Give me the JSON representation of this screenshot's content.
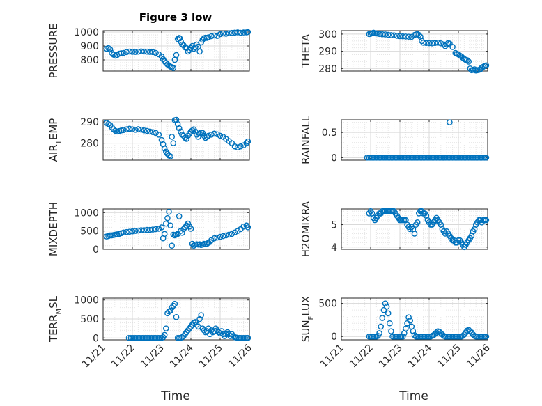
{
  "figure": {
    "title": "Figure 3 low"
  },
  "chart_data": [
    {
      "type": "scatter",
      "id": "pressure",
      "ylabel": "PRESSURE",
      "ylim": [
        720,
        1010
      ],
      "yticks": [
        800,
        900,
        1000
      ],
      "xlim": [
        0,
        5
      ],
      "grid": true,
      "marker": "circle",
      "x": [
        0.12,
        0.18,
        0.24,
        0.3,
        0.36,
        0.42,
        0.48,
        0.55,
        0.62,
        0.7,
        0.8,
        0.9,
        1.0,
        1.1,
        1.2,
        1.3,
        1.4,
        1.5,
        1.6,
        1.7,
        1.8,
        1.9,
        2.0,
        2.05,
        2.1,
        2.15,
        2.2,
        2.25,
        2.3,
        2.35,
        2.4,
        2.45,
        2.5,
        2.55,
        2.6,
        2.62,
        2.66,
        2.7,
        2.75,
        2.8,
        2.85,
        2.9,
        2.95,
        3.0,
        3.05,
        3.1,
        3.15,
        3.2,
        3.25,
        3.3,
        3.35,
        3.4,
        3.45,
        3.5,
        3.55,
        3.6,
        3.7,
        3.8,
        3.9,
        4.0,
        4.1,
        4.2,
        4.3,
        4.4,
        4.5,
        4.6,
        4.7,
        4.8,
        4.9,
        4.95
      ],
      "y": [
        880,
        885,
        875,
        850,
        838,
        830,
        835,
        845,
        848,
        850,
        856,
        860,
        858,
        857,
        859,
        861,
        860,
        859,
        857,
        856,
        850,
        840,
        825,
        805,
        790,
        778,
        768,
        760,
        752,
        748,
        742,
        800,
        835,
        950,
        958,
        955,
        930,
        910,
        905,
        890,
        885,
        860,
        870,
        885,
        900,
        880,
        890,
        910,
        895,
        860,
        925,
        945,
        955,
        960,
        958,
        962,
        970,
        975,
        972,
        985,
        990,
        988,
        992,
        994,
        996,
        998,
        995,
        997,
        998,
        1000
      ]
    },
    {
      "type": "scatter",
      "id": "theta",
      "ylabel": "THETA",
      "ylim": [
        278.5,
        302
      ],
      "yticks": [
        280,
        290,
        300
      ],
      "xlim": [
        0,
        5
      ],
      "grid": true,
      "marker": "circle",
      "x": [
        0.95,
        1.0,
        1.05,
        1.1,
        1.15,
        1.2,
        1.25,
        1.3,
        1.4,
        1.5,
        1.6,
        1.7,
        1.8,
        1.9,
        2.0,
        2.1,
        2.2,
        2.3,
        2.4,
        2.5,
        2.55,
        2.6,
        2.65,
        2.7,
        2.75,
        2.8,
        2.9,
        3.0,
        3.1,
        3.2,
        3.3,
        3.4,
        3.5,
        3.55,
        3.6,
        3.65,
        3.7,
        3.8,
        3.9,
        3.95,
        4.0,
        4.05,
        4.1,
        4.15,
        4.2,
        4.25,
        4.3,
        4.35,
        4.4,
        4.45,
        4.5,
        4.55,
        4.6,
        4.65,
        4.7,
        4.75,
        4.8,
        4.85,
        4.9,
        4.95
      ],
      "y": [
        300.0,
        300.2,
        300.5,
        300.8,
        300.6,
        300.4,
        300.3,
        300.1,
        299.9,
        299.8,
        299.6,
        299.4,
        299.3,
        299.0,
        298.8,
        298.7,
        298.6,
        298.5,
        298.4,
        299.5,
        299.8,
        300.0,
        299.5,
        298.5,
        296.0,
        295.0,
        294.8,
        294.7,
        294.6,
        294.8,
        295.0,
        294.6,
        294.0,
        293.0,
        294.0,
        294.8,
        294.5,
        292.5,
        289.0,
        288.5,
        288.2,
        287.5,
        287.0,
        286.2,
        285.5,
        285.0,
        284.8,
        284.0,
        280.0,
        279.0,
        279.2,
        279.5,
        278.8,
        279.0,
        279.2,
        279.5,
        280.5,
        281.0,
        281.5,
        281.8
      ]
    },
    {
      "type": "scatter",
      "id": "air_temp",
      "ylabel": "AIR_TEMP",
      "ylim": [
        272,
        291
      ],
      "yticks": [
        280,
        290
      ],
      "xlim": [
        0,
        5
      ],
      "grid": true,
      "marker": "circle",
      "x": [
        0.12,
        0.18,
        0.24,
        0.3,
        0.36,
        0.42,
        0.48,
        0.55,
        0.62,
        0.7,
        0.8,
        0.9,
        1.0,
        1.1,
        1.2,
        1.3,
        1.4,
        1.5,
        1.6,
        1.7,
        1.8,
        1.9,
        2.0,
        2.05,
        2.1,
        2.15,
        2.2,
        2.25,
        2.3,
        2.35,
        2.4,
        2.45,
        2.5,
        2.55,
        2.6,
        2.65,
        2.7,
        2.75,
        2.8,
        2.85,
        2.9,
        2.95,
        3.0,
        3.05,
        3.1,
        3.15,
        3.2,
        3.25,
        3.3,
        3.35,
        3.4,
        3.45,
        3.5,
        3.55,
        3.6,
        3.7,
        3.8,
        3.9,
        4.0,
        4.1,
        4.2,
        4.3,
        4.4,
        4.5,
        4.6,
        4.7,
        4.8,
        4.9,
        4.95
      ],
      "y": [
        289.5,
        289.0,
        288.5,
        287.5,
        286.5,
        285.8,
        285.5,
        285.7,
        286.0,
        286.2,
        286.5,
        286.8,
        286.5,
        286.3,
        286.6,
        286.4,
        286.0,
        285.8,
        285.5,
        285.2,
        284.8,
        284.0,
        281.5,
        279.5,
        277.5,
        276.0,
        275.0,
        274.2,
        273.8,
        283.0,
        280.0,
        290.8,
        291.0,
        289.0,
        287.0,
        285.5,
        284.0,
        283.5,
        282.5,
        282.0,
        283.5,
        284.5,
        285.5,
        286.0,
        286.5,
        285.5,
        284.0,
        283.0,
        284.5,
        285.0,
        284.8,
        283.5,
        282.5,
        283.0,
        283.5,
        284.0,
        284.5,
        284.2,
        283.5,
        283.0,
        282.0,
        281.0,
        280.0,
        278.5,
        278.0,
        278.5,
        279.0,
        280.0,
        280.8
      ]
    },
    {
      "type": "scatter",
      "id": "rainfall",
      "ylabel": "RAINFALL",
      "ylim": [
        -0.05,
        0.75
      ],
      "yticks": [
        0,
        0.5
      ],
      "xlim": [
        0,
        5
      ],
      "grid": true,
      "marker": "circle",
      "x": [
        0.88,
        0.95,
        1.0,
        1.05,
        1.1,
        1.15,
        1.2,
        1.25,
        1.3,
        1.35,
        1.4,
        1.45,
        1.5,
        1.55,
        1.6,
        1.65,
        1.7,
        1.75,
        1.8,
        1.85,
        1.9,
        1.95,
        2.0,
        2.05,
        2.1,
        2.15,
        2.2,
        2.25,
        2.3,
        2.35,
        2.4,
        2.45,
        2.5,
        2.55,
        2.6,
        2.65,
        2.7,
        2.75,
        2.8,
        2.85,
        2.9,
        2.95,
        3.0,
        3.05,
        3.1,
        3.15,
        3.2,
        3.25,
        3.3,
        3.35,
        3.4,
        3.45,
        3.5,
        3.55,
        3.6,
        3.65,
        3.7,
        3.75,
        3.8,
        3.85,
        3.9,
        3.95,
        4.0,
        4.05,
        4.1,
        4.15,
        4.2,
        4.25,
        4.3,
        4.35,
        4.4,
        4.45,
        4.5,
        4.55,
        4.6,
        4.65,
        4.7,
        4.75,
        4.8,
        4.85,
        4.9,
        4.95
      ],
      "y": [
        0,
        0,
        0,
        0,
        0,
        0,
        0,
        0,
        0,
        0,
        0,
        0,
        0,
        0,
        0,
        0,
        0,
        0,
        0,
        0,
        0,
        0,
        0,
        0,
        0,
        0,
        0,
        0,
        0,
        0,
        0,
        0,
        0,
        0,
        0,
        0,
        0,
        0,
        0,
        0,
        0,
        0,
        0,
        0,
        0,
        0,
        0,
        0,
        0,
        0,
        0,
        0,
        0,
        0,
        0,
        0,
        0,
        0,
        0,
        0,
        0,
        0,
        0,
        0,
        0,
        0,
        0,
        0,
        0,
        0,
        0,
        0,
        0,
        0,
        0,
        0,
        0,
        0,
        0,
        0,
        0,
        0
      ],
      "extra_x": [
        3.7
      ],
      "extra_y": [
        0.7
      ]
    },
    {
      "type": "scatter",
      "id": "mixdepth",
      "ylabel": "MIXDEPTH",
      "ylim": [
        0,
        1100
      ],
      "yticks": [
        0,
        500,
        1000
      ],
      "xlim": [
        0,
        5
      ],
      "grid": true,
      "marker": "circle",
      "x": [
        0.12,
        0.18,
        0.24,
        0.3,
        0.36,
        0.42,
        0.48,
        0.55,
        0.62,
        0.7,
        0.8,
        0.9,
        1.0,
        1.1,
        1.2,
        1.3,
        1.4,
        1.5,
        1.6,
        1.7,
        1.8,
        1.9,
        2.0,
        2.05,
        2.1,
        2.15,
        2.2,
        2.25,
        2.3,
        2.35,
        2.4,
        2.45,
        2.5,
        2.55,
        2.6,
        2.65,
        2.7,
        2.75,
        2.8,
        2.85,
        2.9,
        2.95,
        3.0,
        3.05,
        3.1,
        3.15,
        3.2,
        3.25,
        3.3,
        3.35,
        3.4,
        3.45,
        3.5,
        3.55,
        3.6,
        3.65,
        3.7,
        3.8,
        3.9,
        4.0,
        4.1,
        4.2,
        4.3,
        4.4,
        4.5,
        4.6,
        4.7,
        4.8,
        4.9,
        4.95
      ],
      "y": [
        350,
        360,
        380,
        380,
        390,
        400,
        410,
        420,
        440,
        460,
        470,
        480,
        490,
        500,
        510,
        520,
        520,
        530,
        530,
        540,
        550,
        560,
        600,
        300,
        420,
        700,
        850,
        1020,
        650,
        100,
        400,
        380,
        400,
        420,
        900,
        500,
        450,
        550,
        600,
        650,
        700,
        620,
        560,
        150,
        100,
        130,
        140,
        130,
        140,
        120,
        130,
        150,
        140,
        150,
        180,
        200,
        250,
        300,
        320,
        340,
        360,
        380,
        400,
        420,
        460,
        500,
        550,
        620,
        650,
        600
      ]
    },
    {
      "type": "scatter",
      "id": "h2omixra",
      "ylabel": "H2OMIXRA",
      "ylim": [
        3.9,
        5.7
      ],
      "yticks": [
        4,
        5
      ],
      "xlim": [
        0,
        5
      ],
      "grid": true,
      "marker": "circle",
      "x": [
        0.95,
        1.0,
        1.05,
        1.1,
        1.15,
        1.2,
        1.25,
        1.3,
        1.35,
        1.4,
        1.45,
        1.5,
        1.55,
        1.6,
        1.65,
        1.7,
        1.75,
        1.8,
        1.85,
        1.9,
        1.95,
        2.0,
        2.05,
        2.1,
        2.15,
        2.2,
        2.25,
        2.3,
        2.35,
        2.4,
        2.45,
        2.5,
        2.55,
        2.6,
        2.65,
        2.7,
        2.75,
        2.8,
        2.85,
        2.9,
        2.95,
        3.0,
        3.05,
        3.1,
        3.15,
        3.2,
        3.25,
        3.3,
        3.35,
        3.4,
        3.45,
        3.5,
        3.55,
        3.6,
        3.65,
        3.7,
        3.75,
        3.8,
        3.85,
        3.9,
        3.95,
        4.0,
        4.05,
        4.1,
        4.15,
        4.2,
        4.25,
        4.3,
        4.35,
        4.4,
        4.45,
        4.5,
        4.55,
        4.6,
        4.65,
        4.7,
        4.75,
        4.8,
        4.85,
        4.9,
        4.95
      ],
      "y": [
        5.5,
        5.6,
        5.5,
        5.3,
        5.2,
        5.3,
        5.4,
        5.5,
        5.5,
        5.6,
        5.6,
        5.6,
        5.6,
        5.6,
        5.6,
        5.6,
        5.6,
        5.6,
        5.5,
        5.4,
        5.3,
        5.2,
        5.2,
        5.2,
        5.2,
        5.2,
        5.0,
        4.9,
        4.8,
        4.9,
        4.8,
        4.6,
        5.0,
        5.1,
        5.5,
        5.6,
        5.6,
        5.5,
        5.5,
        5.4,
        5.2,
        5.1,
        5.0,
        5.0,
        5.1,
        5.2,
        5.3,
        5.2,
        5.1,
        5.0,
        4.8,
        4.7,
        4.6,
        4.7,
        4.6,
        4.5,
        4.4,
        4.3,
        4.3,
        4.2,
        4.2,
        4.3,
        4.3,
        4.2,
        4.1,
        4.0,
        4.1,
        4.2,
        4.3,
        4.4,
        4.5,
        4.7,
        4.8,
        5.0,
        5.1,
        5.2,
        5.2,
        5.1,
        5.2,
        5.2,
        5.2
      ]
    },
    {
      "type": "scatter",
      "id": "terr_msl",
      "ylabel": "TERR_MSL",
      "ylim": [
        -50,
        1050
      ],
      "yticks": [
        0,
        500,
        1000
      ],
      "xlim": [
        0,
        5
      ],
      "grid": true,
      "marker": "circle",
      "x": [
        0.88,
        0.95,
        1.0,
        1.05,
        1.1,
        1.15,
        1.2,
        1.25,
        1.3,
        1.35,
        1.4,
        1.45,
        1.5,
        1.55,
        1.6,
        1.65,
        1.7,
        1.75,
        1.8,
        1.85,
        1.9,
        1.95,
        2.0,
        2.05,
        2.1,
        2.15,
        2.2,
        2.25,
        2.3,
        2.35,
        2.4,
        2.45,
        2.5,
        2.55,
        2.6,
        2.65,
        2.7,
        2.75,
        2.8,
        2.85,
        2.9,
        2.95,
        3.0,
        3.05,
        3.1,
        3.15,
        3.2,
        3.25,
        3.3,
        3.35,
        3.4,
        3.45,
        3.5,
        3.55,
        3.6,
        3.65,
        3.7,
        3.75,
        3.8,
        3.85,
        3.9,
        3.95,
        4.0,
        4.05,
        4.1,
        4.15,
        4.2,
        4.25,
        4.3,
        4.35,
        4.4,
        4.45,
        4.5,
        4.55,
        4.6,
        4.65,
        4.7,
        4.75,
        4.8,
        4.85,
        4.9,
        4.95
      ],
      "y": [
        0,
        0,
        0,
        0,
        0,
        0,
        0,
        0,
        0,
        0,
        0,
        0,
        0,
        0,
        0,
        0,
        0,
        0,
        0,
        0,
        0,
        0,
        0,
        20,
        80,
        250,
        650,
        700,
        720,
        800,
        850,
        900,
        550,
        0,
        0,
        0,
        20,
        50,
        100,
        150,
        200,
        250,
        300,
        350,
        400,
        420,
        350,
        300,
        500,
        600,
        250,
        200,
        150,
        180,
        250,
        100,
        200,
        150,
        180,
        250,
        200,
        150,
        120,
        180,
        100,
        50,
        100,
        150,
        100,
        50,
        100,
        50,
        20,
        10,
        0,
        0,
        0,
        0,
        0,
        0,
        0,
        0
      ]
    },
    {
      "type": "scatter",
      "id": "sun_flux",
      "ylabel": "SUN_FLUX",
      "ylim": [
        -50,
        580
      ],
      "yticks": [
        0,
        500
      ],
      "xlim": [
        0,
        5
      ],
      "grid": true,
      "marker": "circle",
      "x": [
        0.95,
        1.0,
        1.05,
        1.1,
        1.15,
        1.2,
        1.25,
        1.3,
        1.35,
        1.4,
        1.45,
        1.5,
        1.55,
        1.6,
        1.65,
        1.7,
        1.75,
        1.8,
        1.85,
        1.9,
        1.95,
        2.0,
        2.05,
        2.1,
        2.15,
        2.2,
        2.25,
        2.3,
        2.35,
        2.4,
        2.45,
        2.5,
        2.55,
        2.6,
        2.65,
        2.7,
        2.75,
        2.8,
        2.85,
        2.9,
        2.95,
        3.0,
        3.05,
        3.1,
        3.15,
        3.2,
        3.25,
        3.3,
        3.35,
        3.4,
        3.45,
        3.5,
        3.55,
        3.6,
        3.65,
        3.7,
        3.75,
        3.8,
        3.85,
        3.9,
        3.95,
        4.0,
        4.05,
        4.1,
        4.15,
        4.2,
        4.25,
        4.3,
        4.35,
        4.4,
        4.45,
        4.5,
        4.55,
        4.6,
        4.65,
        4.7,
        4.75,
        4.8,
        4.85,
        4.9,
        4.95
      ],
      "y": [
        0,
        0,
        0,
        0,
        0,
        0,
        10,
        50,
        150,
        280,
        400,
        500,
        450,
        350,
        200,
        80,
        0,
        0,
        0,
        0,
        0,
        0,
        0,
        0,
        50,
        120,
        200,
        290,
        240,
        150,
        80,
        20,
        0,
        0,
        0,
        0,
        0,
        0,
        0,
        0,
        0,
        0,
        0,
        10,
        20,
        40,
        60,
        80,
        70,
        50,
        30,
        10,
        0,
        0,
        0,
        0,
        0,
        0,
        0,
        0,
        0,
        0,
        0,
        0,
        10,
        30,
        60,
        90,
        100,
        80,
        60,
        30,
        10,
        0,
        0,
        0,
        0,
        0,
        0,
        0,
        0
      ]
    }
  ],
  "xaxis": {
    "ticks": [
      0,
      1,
      2,
      3,
      4,
      5
    ],
    "tick_labels": [
      "11/21",
      "11/22",
      "11/23",
      "11/24",
      "11/25",
      "11/26"
    ],
    "label": "Time"
  },
  "colors": {
    "marker": "#0072BD",
    "grid": "#d9d9d9",
    "axis": "#262626"
  }
}
